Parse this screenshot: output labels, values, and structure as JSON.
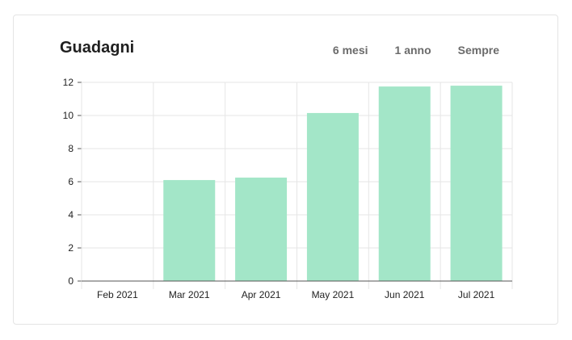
{
  "card": {
    "title": "Guadagni",
    "range_tabs": [
      "6 mesi",
      "1 anno",
      "Sempre"
    ]
  },
  "colors": {
    "bar": "#a3e6c8",
    "grid": "#e6e6e6",
    "axis": "#555555",
    "text": "#222222"
  },
  "chart_data": {
    "type": "bar",
    "title": "",
    "xlabel": "",
    "ylabel": "",
    "categories": [
      "Feb 2021",
      "Mar 2021",
      "Apr 2021",
      "May 2021",
      "Jun 2021",
      "Jul 2021"
    ],
    "values": [
      0,
      6.1,
      6.25,
      10.15,
      11.75,
      11.8
    ],
    "ylim": [
      0,
      12
    ],
    "yticks": [
      0,
      2,
      4,
      6,
      8,
      10,
      12
    ],
    "grid": true,
    "legend": "none"
  }
}
